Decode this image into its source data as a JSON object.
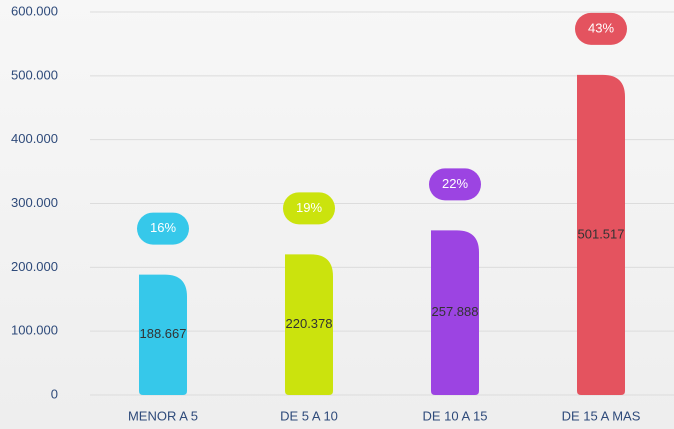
{
  "chart_data": {
    "type": "bar",
    "categories": [
      "MENOR A 5",
      "DE 5 A 10",
      "DE 10 A 15",
      "DE 15 A MAS"
    ],
    "values": [
      188667,
      220378,
      257888,
      501517
    ],
    "value_labels": [
      "188.667",
      "220.378",
      "257.888",
      "501.517"
    ],
    "percentages": [
      16,
      19,
      22,
      43
    ],
    "percentage_labels": [
      "16%",
      "19%",
      "22%",
      "43%"
    ],
    "colors": [
      "#36c8ea",
      "#cbe30d",
      "#9c44e2",
      "#e4535f"
    ],
    "ylim": [
      0,
      600000
    ],
    "yticks": [
      {
        "value": 0,
        "label": "0"
      },
      {
        "value": 100000,
        "label": "100.000"
      },
      {
        "value": 200000,
        "label": "200.000"
      },
      {
        "value": 300000,
        "label": "300.000"
      },
      {
        "value": 400000,
        "label": "400.000"
      },
      {
        "value": 500000,
        "label": "500.000"
      },
      {
        "value": 600000,
        "label": "600.000"
      }
    ],
    "grid": true
  }
}
